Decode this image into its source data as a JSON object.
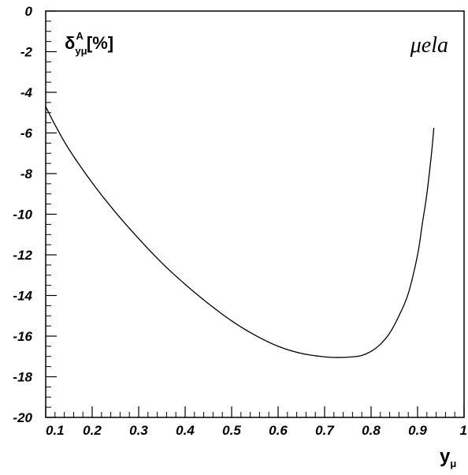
{
  "chart_data": {
    "type": "line",
    "title": "",
    "xlim": [
      0.1,
      1.0
    ],
    "ylim": [
      -20,
      0
    ],
    "x_ticks": [
      0.1,
      0.2,
      0.3,
      0.4,
      0.5,
      0.6,
      0.7,
      0.8,
      0.9,
      1.0
    ],
    "x_tick_labels": [
      "0.1",
      "0.2",
      "0.3",
      "0.4",
      "0.5",
      "0.6",
      "0.7",
      "0.8",
      "0.9",
      "1"
    ],
    "y_ticks": [
      0,
      -2,
      -4,
      -6,
      -8,
      -10,
      -12,
      -14,
      -16,
      -18,
      -20
    ],
    "y_tick_labels": [
      "0",
      "-2",
      "-4",
      "-6",
      "-8",
      "-10",
      "-12",
      "-14",
      "-16",
      "-18",
      "-20"
    ],
    "ylabel": {
      "greek": "δ",
      "sub": "yμ",
      "sup": "A",
      "unit": "[%]"
    },
    "xlabel": {
      "main": "y",
      "sub": "μ"
    },
    "annotation": "μela",
    "grid": false,
    "series": [
      {
        "x": [
          0.1,
          0.12,
          0.15,
          0.2,
          0.25,
          0.3,
          0.35,
          0.4,
          0.45,
          0.5,
          0.55,
          0.6,
          0.65,
          0.7,
          0.73,
          0.76,
          0.78,
          0.8,
          0.82,
          0.84,
          0.86,
          0.88,
          0.9,
          0.91,
          0.92,
          0.93,
          0.935
        ],
        "y": [
          -4.7,
          -5.6,
          -6.8,
          -8.45,
          -9.9,
          -11.2,
          -12.4,
          -13.45,
          -14.4,
          -15.25,
          -15.95,
          -16.5,
          -16.85,
          -17.02,
          -17.05,
          -17.02,
          -16.95,
          -16.75,
          -16.4,
          -15.85,
          -15.0,
          -13.9,
          -12.0,
          -10.5,
          -9.0,
          -7.0,
          -5.75
        ],
        "color": "#000000"
      }
    ]
  }
}
